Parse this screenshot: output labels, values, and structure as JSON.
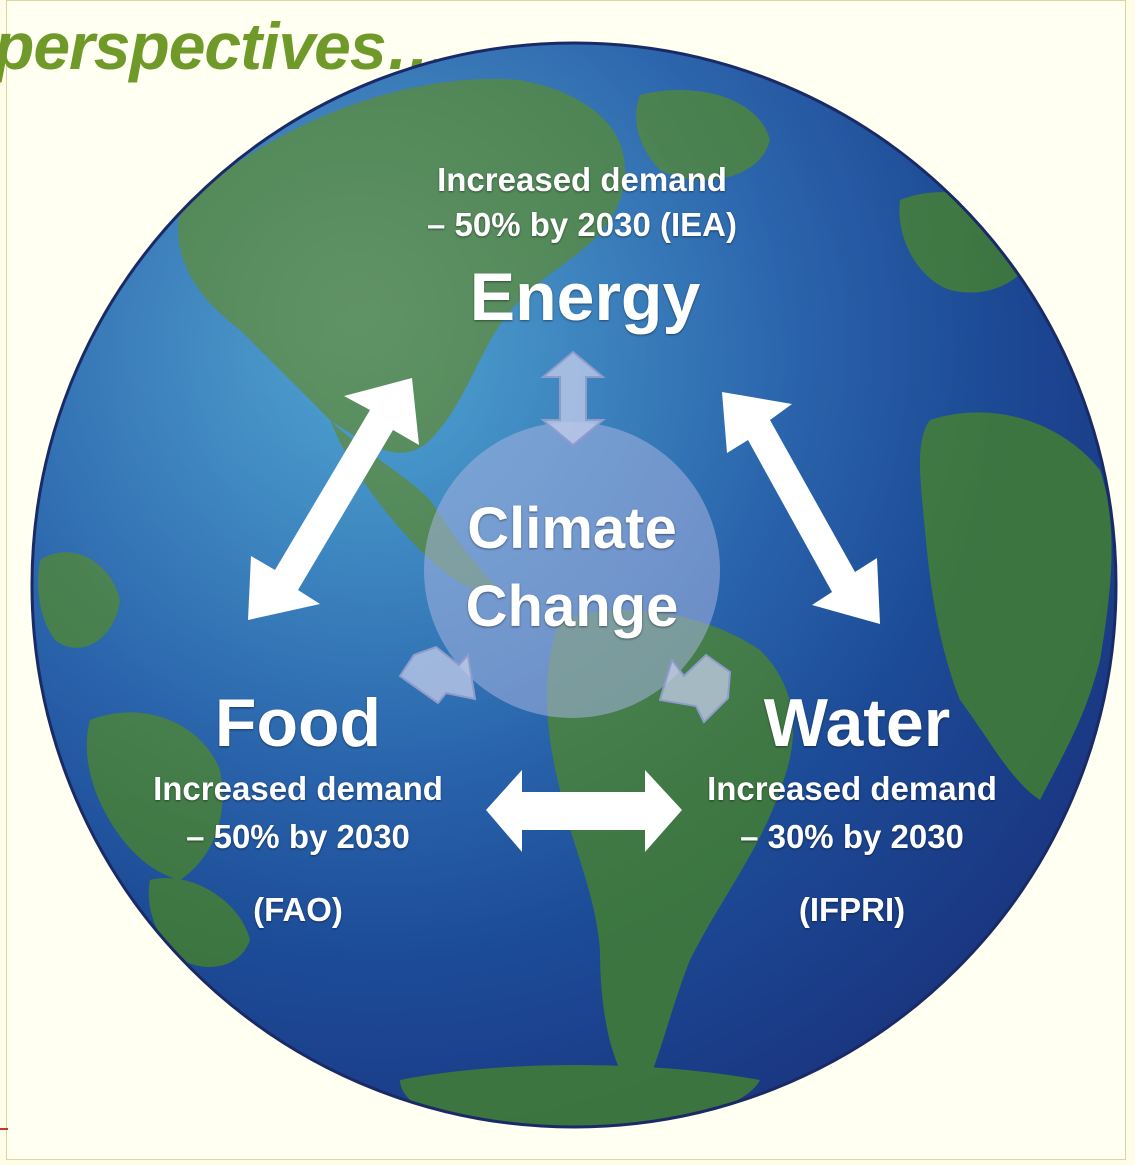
{
  "heading": "perspectives…",
  "center": {
    "line1": "Climate",
    "line2": "Change"
  },
  "energy": {
    "title": "Energy",
    "line1": "Increased demand",
    "line2": "– 50% by 2030 (IEA)"
  },
  "food": {
    "title": "Food",
    "line1": "Increased demand",
    "line2": "– 50% by 2030",
    "source": "(FAO)"
  },
  "water": {
    "title": "Water",
    "line1": "Increased demand",
    "line2": "– 30% by 2030",
    "source": "(IFPRI)"
  },
  "colors": {
    "heading": "#6f9a2a",
    "ocean": "#1d4f9a",
    "land": "#3f7a3a",
    "arrows": "#ffffff",
    "center_circle": "#9aa9d6"
  }
}
